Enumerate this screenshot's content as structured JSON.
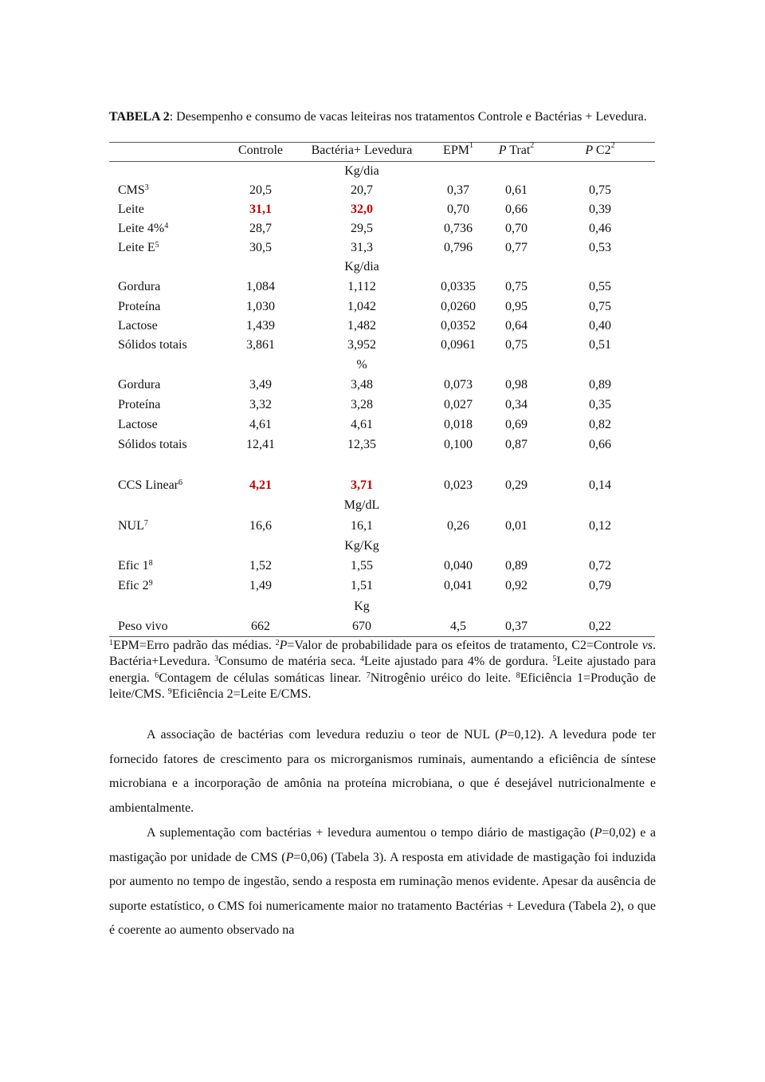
{
  "caption": {
    "label": "TABELA 2",
    "text": ": Desempenho e consumo de vacas leiteiras nos tratamentos Controle e Bactérias + Levedura."
  },
  "highlight_color": "#c00000",
  "headers": [
    {
      "text": "Controle",
      "italic": "",
      "sup": ""
    },
    {
      "text": "Bactéria+ Levedura",
      "italic": "",
      "sup": ""
    },
    {
      "text": "EPM",
      "italic": "",
      "sup": "1"
    },
    {
      "text": "Trat",
      "italic": "P ",
      "sup": "2"
    },
    {
      "text": "C2",
      "italic": "P ",
      "sup": "2"
    }
  ],
  "rows": [
    {
      "unit": "Kg/dia"
    },
    {
      "label": "CMS",
      "sup": "3",
      "values": [
        "20,5",
        "20,7",
        "0,37",
        "0,61",
        "0,75"
      ]
    },
    {
      "label": "Leite",
      "sup": "",
      "values": [
        "31,1",
        "32,0",
        "0,70",
        "0,66",
        "0,39"
      ],
      "highlight": [
        0,
        1
      ]
    },
    {
      "label": "Leite 4%",
      "sup": "4",
      "values": [
        "28,7",
        "29,5",
        "0,736",
        "0,70",
        "0,46"
      ]
    },
    {
      "label": "Leite E",
      "sup": "5",
      "values": [
        "30,5",
        "31,3",
        "0,796",
        "0,77",
        "0,53"
      ]
    },
    {
      "unit": "Kg/dia"
    },
    {
      "label": "Gordura",
      "sup": "",
      "values": [
        "1,084",
        "1,112",
        "0,0335",
        "0,75",
        "0,55"
      ]
    },
    {
      "label": "Proteína",
      "sup": "",
      "values": [
        "1,030",
        "1,042",
        "0,0260",
        "0,95",
        "0,75"
      ]
    },
    {
      "label": "Lactose",
      "sup": "",
      "values": [
        "1,439",
        "1,482",
        "0,0352",
        "0,64",
        "0,40"
      ]
    },
    {
      "label": "Sólidos totais",
      "sup": "",
      "values": [
        "3,861",
        "3,952",
        "0,0961",
        "0,75",
        "0,51"
      ]
    },
    {
      "unit": "%"
    },
    {
      "label": "Gordura",
      "sup": "",
      "values": [
        "3,49",
        "3,48",
        "0,073",
        "0,98",
        "0,89"
      ]
    },
    {
      "label": "Proteína",
      "sup": "",
      "values": [
        "3,32",
        "3,28",
        "0,027",
        "0,34",
        "0,35"
      ]
    },
    {
      "label": "Lactose",
      "sup": "",
      "values": [
        "4,61",
        "4,61",
        "0,018",
        "0,69",
        "0,82"
      ]
    },
    {
      "label": "Sólidos totais",
      "sup": "",
      "values": [
        "12,41",
        "12,35",
        "0,100",
        "0,87",
        "0,66"
      ]
    },
    {
      "blank": true
    },
    {
      "label": "CCS Linear",
      "sup": "6",
      "values": [
        "4,21",
        "3,71",
        "0,023",
        "0,29",
        "0,14"
      ],
      "highlight": [
        0,
        1
      ]
    },
    {
      "unit": "Mg/dL"
    },
    {
      "label": "NUL",
      "sup": "7",
      "values": [
        "16,6",
        "16,1",
        "0,26",
        "0,01",
        "0,12"
      ]
    },
    {
      "unit": "Kg/Kg"
    },
    {
      "label": "Efic 1",
      "sup": "8",
      "values": [
        "1,52",
        "1,55",
        "0,040",
        "0,89",
        "0,72"
      ]
    },
    {
      "label": "Efic 2",
      "sup": "9",
      "values": [
        "1,49",
        "1,51",
        "0,041",
        "0,92",
        "0,79"
      ]
    },
    {
      "unit": "Kg"
    },
    {
      "label": "Peso vivo",
      "sup": "",
      "values": [
        "662",
        "670",
        "4,5",
        "0,37",
        "0,22"
      ]
    }
  ],
  "footnotes": [
    {
      "sup": "1",
      "parts": [
        {
          "t": "EPM=Erro padrão das médias. "
        }
      ]
    },
    {
      "sup": "2",
      "parts": [
        {
          "t": "P",
          "i": true
        },
        {
          "t": "=Valor de probabilidade para os efeitos de tratamento, C2=Controle "
        },
        {
          "t": "vs",
          "i": true
        },
        {
          "t": ". Bactéria+Levedura. "
        }
      ]
    },
    {
      "sup": "3",
      "parts": [
        {
          "t": "Consumo de matéria seca. "
        }
      ]
    },
    {
      "sup": "4",
      "parts": [
        {
          "t": "Leite ajustado para 4% de gordura. "
        }
      ]
    },
    {
      "sup": "5",
      "parts": [
        {
          "t": "Leite ajustado para energia. "
        }
      ]
    },
    {
      "sup": "6",
      "parts": [
        {
          "t": "Contagem de células somáticas linear. "
        }
      ]
    },
    {
      "sup": "7",
      "parts": [
        {
          "t": "Nitrogênio uréico do leite. "
        }
      ]
    },
    {
      "sup": "8",
      "parts": [
        {
          "t": "Eficiência 1=Produção de leite/CMS. "
        }
      ]
    },
    {
      "sup": "9",
      "parts": [
        {
          "t": "Eficiência 2=Leite E/CMS."
        }
      ]
    }
  ],
  "paragraphs": [
    [
      {
        "t": "A associação de bactérias com levedura reduziu o teor de NUL ("
      },
      {
        "t": "P",
        "i": true
      },
      {
        "t": "=0,12). A levedura pode ter fornecido fatores de crescimento para os microrganismos ruminais, aumentando a eficiência de síntese microbiana e a incorporação de amônia na proteína microbiana, o que é desejável nutricionalmente e ambientalmente."
      }
    ],
    [
      {
        "t": "A suplementação com bactérias + levedura aumentou o tempo diário de mastigação ("
      },
      {
        "t": "P",
        "i": true
      },
      {
        "t": "=0,02) e a mastigação por unidade de CMS ("
      },
      {
        "t": "P",
        "i": true
      },
      {
        "t": "=0,06) (Tabela 3). A resposta em atividade de mastigação foi induzida por aumento no tempo de ingestão, sendo a resposta em ruminação menos evidente. Apesar da ausência de suporte estatístico, o CMS foi numericamente maior no tratamento Bactérias + Levedura (Tabela 2), o que é coerente ao aumento observado na"
      }
    ]
  ]
}
